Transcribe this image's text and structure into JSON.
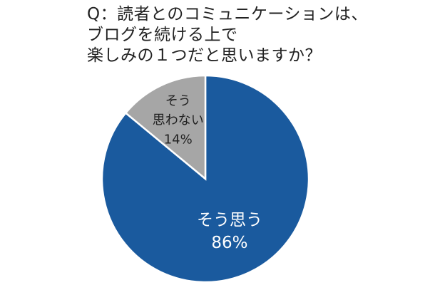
{
  "title_lines": [
    "Q：読者とのコミュニケーションは、",
    "ブログを続ける上で",
    "楽しみの１つだと思いますか？"
  ],
  "chart_data": {
    "type": "pie",
    "title": "Q：読者とのコミュニケーションは、ブログを続ける上で楽しみの１つだと思いますか？",
    "slices": [
      {
        "label_lines": [
          "そう思う"
        ],
        "value": 86,
        "value_label": "86%",
        "color": "#1a5a9e",
        "text_color": "#ffffff"
      },
      {
        "label_lines": [
          "そう",
          "思わない"
        ],
        "value": 14,
        "value_label": "14%",
        "color": "#a6a6a6",
        "text_color": "#222222"
      }
    ],
    "start_angle_deg": 0,
    "direction": "clockwise",
    "legend": "none"
  }
}
